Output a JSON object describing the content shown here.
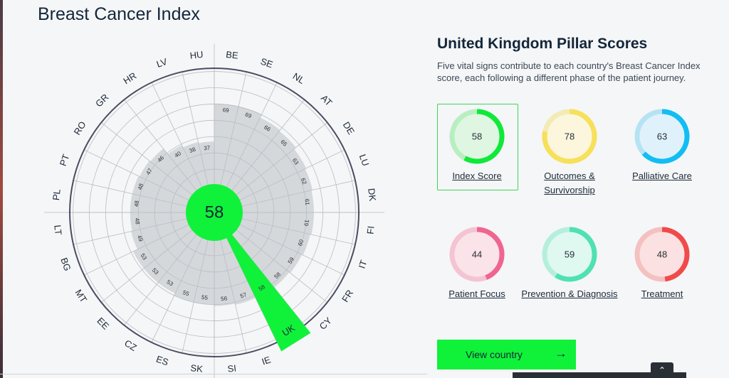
{
  "page": {
    "title": "Breast Cancer Index"
  },
  "chart_data": {
    "type": "radial-bar",
    "center_value": "58",
    "highlight_country": "UK",
    "colors": {
      "bars": "#d5d8db",
      "highlight": "#10f23a",
      "ring": "#4a4d63",
      "grid": "#b9bcc2"
    },
    "countries": [
      "BE",
      "SE",
      "NL",
      "AT",
      "DE",
      "LU",
      "DK",
      "FI",
      "IT",
      "FR",
      "CY",
      "UK",
      "IE",
      "SI",
      "SK",
      "ES",
      "CZ",
      "EE",
      "MT",
      "BG",
      "LT",
      "PL",
      "PT",
      "RO",
      "GR",
      "HR",
      "LV",
      "HU"
    ],
    "values": [
      69,
      69,
      66,
      65,
      63,
      62,
      61,
      61,
      60,
      59,
      58,
      58,
      57,
      56,
      55,
      55,
      53,
      53,
      53,
      49,
      48,
      48,
      48,
      47,
      46,
      40,
      38,
      37
    ],
    "value_labels": [
      "69",
      "69",
      "66",
      "65",
      "63",
      "62",
      "61",
      "61",
      "60",
      "59",
      "58",
      "58",
      "57",
      "56",
      "55",
      "55",
      "53",
      "53",
      "53",
      "49",
      "48",
      "48",
      "48",
      "47",
      "46",
      "40",
      "38",
      "37"
    ]
  },
  "panel": {
    "title": "United Kingdom Pillar Scores",
    "description": "Five vital signs contribute to each country's Breast Cancer Index score, each following a different phase of the patient journey."
  },
  "pillars": [
    {
      "label": "Index Score",
      "value": "58",
      "score": 58,
      "color": "#10e83a",
      "bg": "#dff7e2",
      "track": "#b7efc0",
      "selected": true
    },
    {
      "label": "Outcomes & Survivorship",
      "value": "78",
      "score": 78,
      "color": "#f7e05a",
      "bg": "#fbf6dc",
      "track": "#f3ebb5"
    },
    {
      "label": "Palliative Care",
      "value": "63",
      "score": 63,
      "color": "#12bdf2",
      "bg": "#dff2fb",
      "track": "#b6e3f4"
    },
    {
      "label": "Patient Focus",
      "value": "44",
      "score": 44,
      "color": "#f06590",
      "bg": "#fbe3ea",
      "track": "#f4c4d3"
    },
    {
      "label": "Prevention & Diagnosis",
      "value": "59",
      "score": 59,
      "color": "#4fe1b2",
      "bg": "#dff8f0",
      "track": "#b5efdc"
    },
    {
      "label": "Treatment",
      "value": "48",
      "score": 48,
      "color": "#f04a4a",
      "bg": "#fbe1e1",
      "track": "#f4c0c0"
    }
  ],
  "cta": {
    "label": "View country",
    "arrow": "→",
    "arrow_icon": "arrow-right-icon"
  },
  "scroll_top": {
    "glyph": "⌃",
    "icon": "chevron-up-icon"
  }
}
